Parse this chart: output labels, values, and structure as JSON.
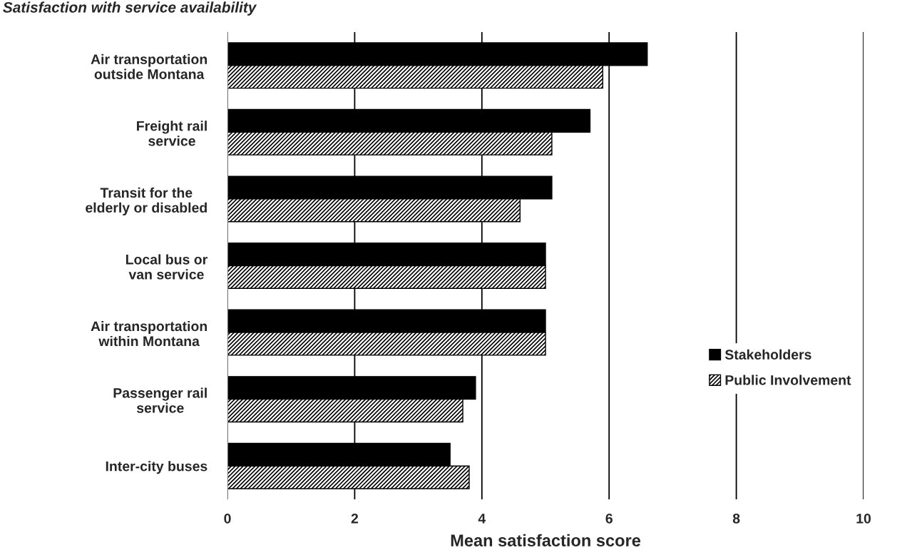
{
  "chart_data": {
    "type": "bar",
    "orientation": "horizontal",
    "title": "Satisfaction with service availability",
    "xlabel": "Mean satisfaction score",
    "categories": [
      "Air transportation\noutside Montana",
      "Freight rail\nservice",
      "Transit for the\nelderly or disabled",
      "Local bus or\nvan service",
      "Air transportation\nwithin Montana",
      "Passenger rail\nservice",
      "Inter-city buses"
    ],
    "series": [
      {
        "name": "Stakeholders",
        "color": "#000000",
        "values": [
          6.6,
          5.7,
          5.1,
          5.0,
          5.0,
          3.9,
          3.5
        ]
      },
      {
        "name": "Public Involvement",
        "color": "#000000",
        "values": [
          5.9,
          5.1,
          4.6,
          5.0,
          5.0,
          3.7,
          3.8
        ]
      }
    ],
    "xlim": [
      0,
      10
    ],
    "xticks": [
      0,
      2,
      4,
      6,
      8,
      10
    ],
    "grid": "x",
    "legend": "right"
  }
}
